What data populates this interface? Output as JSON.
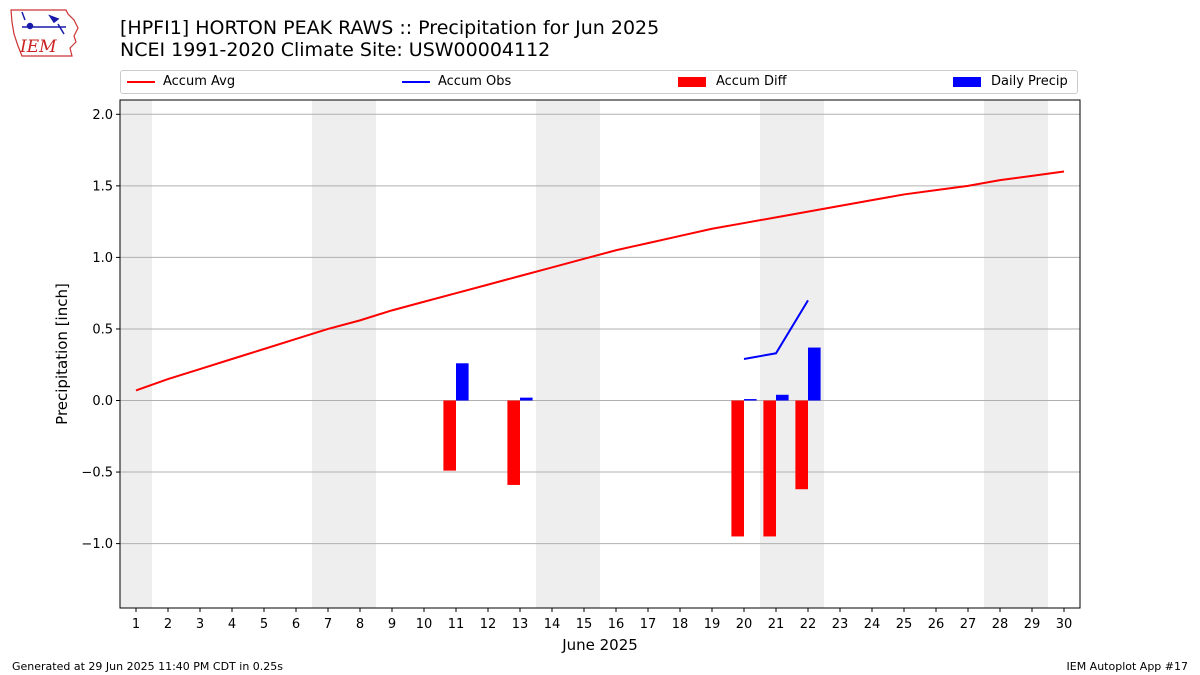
{
  "header": {
    "logo_text": "IEM",
    "title_line1": "[HPFI1] HORTON PEAK RAWS :: Precipitation for Jun 2025",
    "title_line2": "NCEI 1991-2020 Climate Site: USW00004112"
  },
  "legend": {
    "items": [
      {
        "label": "Accum Avg",
        "kind": "line",
        "color": "#ff0000"
      },
      {
        "label": "Accum Obs",
        "kind": "line",
        "color": "#0000ff"
      },
      {
        "label": "Accum Diff",
        "kind": "patch",
        "color": "#ff0000"
      },
      {
        "label": "Daily Precip",
        "kind": "patch",
        "color": "#0000ff"
      }
    ]
  },
  "footer": {
    "left": "Generated at 29 Jun 2025 11:40 PM CDT in 0.25s",
    "right": "IEM Autoplot App #17"
  },
  "chart_data": {
    "type": "bar",
    "xlabel": "June 2025",
    "ylabel": "Precipitation [inch]",
    "xlim": [
      0.5,
      30.5
    ],
    "ylim": [
      -1.45,
      2.1
    ],
    "yticks": [
      -1.0,
      -0.5,
      0.0,
      0.5,
      1.0,
      1.5,
      2.0
    ],
    "ytick_labels": [
      "−1.0",
      "−0.5",
      "0.0",
      "0.5",
      "1.0",
      "1.5",
      "2.0"
    ],
    "x_categories": [
      "1",
      "2",
      "3",
      "4",
      "5",
      "6",
      "7",
      "8",
      "9",
      "10",
      "11",
      "12",
      "13",
      "14",
      "15",
      "16",
      "17",
      "18",
      "19",
      "20",
      "21",
      "22",
      "23",
      "24",
      "25",
      "26",
      "27",
      "28",
      "29",
      "30"
    ],
    "grid": "y",
    "weekend_shading": [
      [
        0.5,
        1.5
      ],
      [
        6.5,
        8.5
      ],
      [
        13.5,
        15.5
      ],
      [
        20.5,
        22.5
      ],
      [
        27.5,
        29.5
      ]
    ],
    "shade_color": "#eeeeee",
    "series": [
      {
        "name": "Accum Avg",
        "type": "line",
        "color": "#ff0000",
        "x": [
          1,
          2,
          3,
          4,
          5,
          6,
          7,
          8,
          9,
          10,
          11,
          12,
          13,
          14,
          15,
          16,
          17,
          18,
          19,
          20,
          21,
          22,
          23,
          24,
          25,
          26,
          27,
          28,
          29,
          30
        ],
        "values": [
          0.07,
          0.15,
          0.22,
          0.29,
          0.36,
          0.43,
          0.5,
          0.56,
          0.63,
          0.69,
          0.75,
          0.81,
          0.87,
          0.93,
          0.99,
          1.05,
          1.1,
          1.15,
          1.2,
          1.24,
          1.28,
          1.32,
          1.36,
          1.4,
          1.44,
          1.47,
          1.5,
          1.54,
          1.57,
          1.6
        ]
      },
      {
        "name": "Accum Obs",
        "type": "line",
        "color": "#0000ff",
        "x": [
          20,
          21,
          22
        ],
        "values": [
          0.29,
          0.33,
          0.7
        ]
      },
      {
        "name": "Accum Diff",
        "type": "bar",
        "color": "#ff0000",
        "x": [
          11,
          13,
          20,
          21,
          22
        ],
        "values": [
          -0.49,
          -0.59,
          -0.95,
          -0.95,
          -0.62
        ]
      },
      {
        "name": "Daily Precip",
        "type": "bar",
        "color": "#0000ff",
        "x": [
          11,
          13,
          20,
          21,
          22
        ],
        "values": [
          0.26,
          0.02,
          0.01,
          0.04,
          0.37
        ]
      }
    ]
  }
}
